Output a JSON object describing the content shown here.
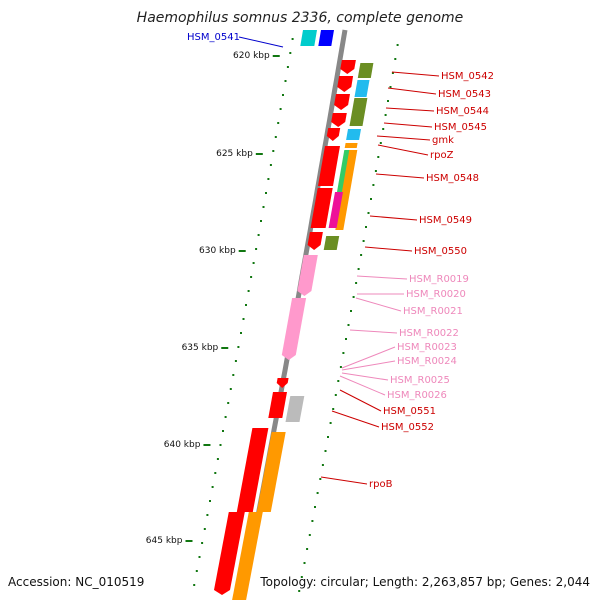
{
  "title": "Haemophilus somnus 2336, complete genome",
  "footer": {
    "accession": "Accession: NC_010519",
    "topology": "Topology: circular; Length: 2,263,857 bp; Genes: 2,044"
  },
  "ticks": [
    "620 kbp",
    "625 kbp",
    "630 kbp",
    "635 kbp",
    "640 kbp",
    "645 kbp"
  ],
  "genes": [
    {
      "label": "HSM_0541",
      "color": "#0000cc",
      "strand": "-"
    },
    {
      "label": "HSM_0542",
      "color": "#cc0000",
      "strand": "+"
    },
    {
      "label": "HSM_0543",
      "color": "#cc0000",
      "strand": "+"
    },
    {
      "label": "HSM_0544",
      "color": "#cc0000",
      "strand": "+"
    },
    {
      "label": "HSM_0545",
      "color": "#cc0000",
      "strand": "+"
    },
    {
      "label": "gmk",
      "color": "#cc0000",
      "strand": "+"
    },
    {
      "label": "rpoZ",
      "color": "#cc0000",
      "strand": "+"
    },
    {
      "label": "HSM_0548",
      "color": "#cc0000",
      "strand": "+"
    },
    {
      "label": "HSM_0549",
      "color": "#cc0000",
      "strand": "+"
    },
    {
      "label": "HSM_0550",
      "color": "#cc0000",
      "strand": "+"
    },
    {
      "label": "HSM_R0019",
      "color": "#ee88bb",
      "strand": "+"
    },
    {
      "label": "HSM_R0020",
      "color": "#ee88bb",
      "strand": "+"
    },
    {
      "label": "HSM_R0021",
      "color": "#ee88bb",
      "strand": "+"
    },
    {
      "label": "HSM_R0022",
      "color": "#ee88bb",
      "strand": "+"
    },
    {
      "label": "HSM_R0023",
      "color": "#ee88bb",
      "strand": "+"
    },
    {
      "label": "HSM_R0024",
      "color": "#ee88bb",
      "strand": "+"
    },
    {
      "label": "HSM_R0025",
      "color": "#ee88bb",
      "strand": "+"
    },
    {
      "label": "HSM_R0026",
      "color": "#ee88bb",
      "strand": "+"
    },
    {
      "label": "HSM_0551",
      "color": "#cc0000",
      "strand": "+"
    },
    {
      "label": "HSM_0552",
      "color": "#cc0000",
      "strand": "+"
    },
    {
      "label": "rpoB",
      "color": "#cc0000",
      "strand": "+"
    }
  ],
  "colors": {
    "backbone": "#888888",
    "plus_strand": "#ff0000",
    "minus_strand": "#0000ff",
    "rna": "#ff99cc",
    "cog_cyan": "#00cccc",
    "cog_olive": "#6b8e23",
    "cog_orange": "#ff9900",
    "cog_green": "#33cc66",
    "cog_magenta": "#ee1199",
    "cog_sky": "#22bbee",
    "cog_gray": "#bbbbbb",
    "gc_dots": "#117711"
  }
}
